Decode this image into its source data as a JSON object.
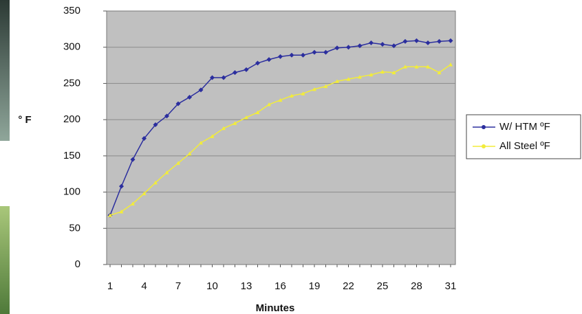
{
  "chart_data": {
    "type": "line",
    "y_label": "° F",
    "x_label": "Minutes",
    "categories": [
      "1",
      null,
      null,
      "4",
      null,
      null,
      "7",
      null,
      null,
      "10",
      null,
      null,
      "13",
      null,
      null,
      "16",
      null,
      null,
      "19",
      null,
      null,
      "22",
      null,
      null,
      "25",
      null,
      null,
      "28",
      null,
      null,
      "31"
    ],
    "series": [
      {
        "name": "W/ HTM ºF",
        "color": "#2b2e9e",
        "values": [
          68,
          108,
          145,
          174,
          193,
          205,
          222,
          231,
          241,
          258,
          258,
          265,
          269,
          278,
          283,
          287,
          289,
          289,
          293,
          293,
          299,
          300,
          302,
          306,
          304,
          302,
          308,
          309,
          306,
          308,
          309
        ]
      },
      {
        "name": "All Steel ºF",
        "color": "#f2ec3a",
        "values": [
          68,
          73,
          84,
          98,
          113,
          127,
          140,
          153,
          168,
          177,
          188,
          195,
          203,
          210,
          221,
          227,
          233,
          236,
          242,
          246,
          253,
          256,
          259,
          262,
          266,
          265,
          273,
          273,
          273,
          265,
          276
        ]
      }
    ],
    "ylim": [
      0,
      350
    ],
    "yticks": [
      0,
      50,
      100,
      150,
      200,
      250,
      300,
      350
    ],
    "grid": true,
    "legend": "right"
  }
}
